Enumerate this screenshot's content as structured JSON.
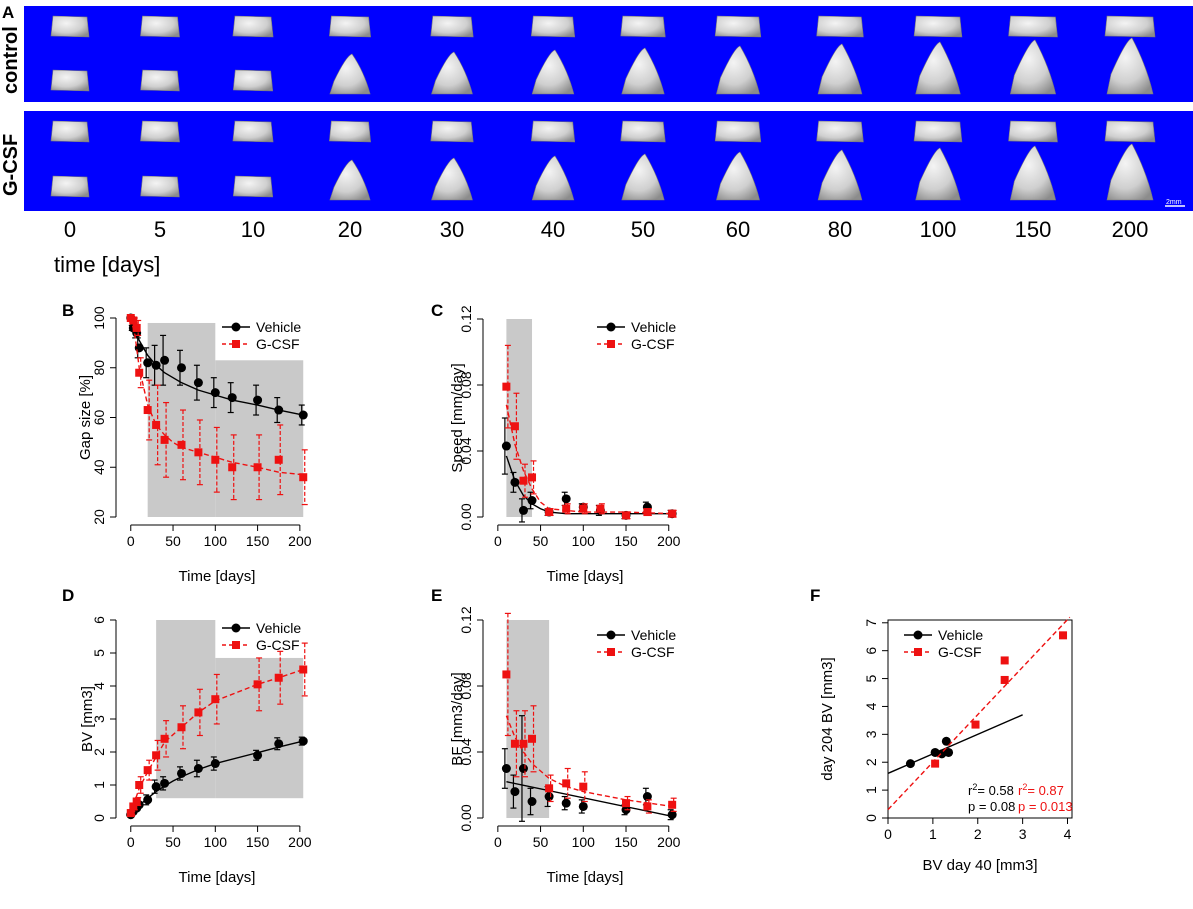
{
  "panel_letters": [
    "A",
    "B",
    "C",
    "D",
    "E",
    "F"
  ],
  "panel_a": {
    "row_labels": [
      "control",
      "G-CSF"
    ],
    "timepoints": [
      "0",
      "5",
      "10",
      "20",
      "30",
      "40",
      "50",
      "60",
      "80",
      "100",
      "150",
      "200"
    ],
    "time_axis_label": "time [days]",
    "scale_bar_label": "2mm",
    "background_color": "#0000ff",
    "specimen_color": "#d6d6d6",
    "specimen_images": "3D micro-CT renderings of bone specimens (two views per row)"
  },
  "colors": {
    "vehicle": "#000000",
    "gcsf": "#ee1111",
    "shade": "#c9c9c9"
  },
  "chart_data": [
    {
      "id": "B",
      "type": "line",
      "title": "",
      "xlabel": "Time [days]",
      "ylabel": "Gap size [%]",
      "xlim": [
        -8,
        212
      ],
      "ylim": [
        20,
        100
      ],
      "xticks": [
        0,
        50,
        100,
        150,
        200
      ],
      "yticks": [
        20,
        40,
        60,
        80,
        100
      ],
      "grid": false,
      "legend": "top-right",
      "shaded_regions": [
        {
          "x": [
            20,
            100
          ],
          "y": [
            20,
            98
          ]
        },
        {
          "x": [
            100,
            204
          ],
          "y": [
            20,
            83
          ]
        }
      ],
      "series": [
        {
          "name": "Vehicle",
          "style": "solid",
          "marker": "circle",
          "color": "#000000",
          "x": [
            0,
            3,
            7,
            10,
            20,
            30,
            40,
            60,
            80,
            100,
            120,
            150,
            175,
            204
          ],
          "values": [
            100,
            96,
            94,
            88,
            82,
            81,
            83,
            80,
            74,
            70,
            68,
            67,
            63,
            61
          ],
          "errors": [
            0,
            1,
            2,
            4,
            6,
            8,
            10,
            7,
            7,
            6,
            6,
            6,
            5,
            4
          ],
          "fit_x": [
            0,
            5,
            10,
            20,
            30,
            40,
            50,
            60,
            80,
            100,
            120,
            150,
            175,
            204
          ],
          "fit_y": [
            100,
            95,
            91,
            85,
            81,
            78,
            76,
            74,
            71,
            69,
            67,
            65,
            63,
            61
          ]
        },
        {
          "name": "G-CSF",
          "style": "dashed",
          "marker": "square",
          "color": "#ee1111",
          "x": [
            0,
            3,
            7,
            10,
            20,
            30,
            40,
            60,
            80,
            100,
            120,
            150,
            175,
            204
          ],
          "values": [
            100,
            99,
            96,
            78,
            63,
            57,
            51,
            49,
            46,
            43,
            40,
            40,
            43,
            36
          ],
          "errors": [
            0,
            1,
            3,
            6,
            12,
            16,
            15,
            14,
            13,
            13,
            13,
            13,
            14,
            11
          ],
          "fit_x": [
            0,
            5,
            10,
            20,
            30,
            40,
            50,
            60,
            80,
            100,
            120,
            150,
            175,
            204
          ],
          "fit_y": [
            100,
            93,
            80,
            65,
            57,
            53,
            50,
            48,
            46,
            44,
            42,
            40,
            38,
            37
          ]
        }
      ]
    },
    {
      "id": "C",
      "type": "line",
      "title": "",
      "xlabel": "Time [days]",
      "ylabel": "Speed [mm/day]",
      "xlim": [
        -8,
        212
      ],
      "ylim": [
        0,
        0.12
      ],
      "xticks": [
        0,
        50,
        100,
        150,
        200
      ],
      "yticks": [
        0.0,
        0.04,
        0.08,
        0.12
      ],
      "ytick_labels": [
        "0.00",
        "0.04",
        "0.08",
        "0.12"
      ],
      "grid": false,
      "legend": "top-right",
      "shaded_regions": [
        {
          "x": [
            10,
            40
          ],
          "y": [
            0,
            0.12
          ]
        }
      ],
      "series": [
        {
          "name": "Vehicle",
          "style": "solid",
          "marker": "circle",
          "color": "#000000",
          "x": [
            10,
            20,
            30,
            40,
            60,
            80,
            100,
            120,
            150,
            175,
            204
          ],
          "values": [
            0.043,
            0.021,
            0.004,
            0.01,
            0.003,
            0.011,
            0.006,
            0.004,
            0.001,
            0.006,
            0.002
          ],
          "errors": [
            0.017,
            0.006,
            0.007,
            0.005,
            0.002,
            0.004,
            0.002,
            0.003,
            0.002,
            0.003,
            0.002
          ],
          "fit_x": [
            10,
            20,
            30,
            40,
            50,
            60,
            80,
            100,
            150,
            204
          ],
          "fit_y": [
            0.037,
            0.022,
            0.013,
            0.008,
            0.005,
            0.003,
            0.002,
            0.002,
            0.002,
            0.002
          ]
        },
        {
          "name": "G-CSF",
          "style": "dashed",
          "marker": "square",
          "color": "#ee1111",
          "x": [
            10,
            20,
            30,
            40,
            60,
            80,
            100,
            120,
            150,
            175,
            204
          ],
          "values": [
            0.079,
            0.055,
            0.022,
            0.024,
            0.003,
            0.005,
            0.005,
            0.005,
            0.001,
            0.003,
            0.002
          ],
          "errors": [
            0.025,
            0.02,
            0.01,
            0.01,
            0.002,
            0.003,
            0.003,
            0.003,
            0.002,
            0.002,
            0.002
          ],
          "fit_x": [
            10,
            20,
            30,
            40,
            50,
            60,
            80,
            100,
            150,
            204
          ],
          "fit_y": [
            0.068,
            0.044,
            0.028,
            0.017,
            0.009,
            0.005,
            0.004,
            0.003,
            0.003,
            0.002
          ]
        }
      ]
    },
    {
      "id": "D",
      "type": "line",
      "title": "",
      "xlabel": "Time [days]",
      "ylabel": "BV [mm3]",
      "xlim": [
        -8,
        212
      ],
      "ylim": [
        0,
        6
      ],
      "xticks": [
        0,
        50,
        100,
        150,
        200
      ],
      "yticks": [
        0,
        1,
        2,
        3,
        4,
        5,
        6
      ],
      "grid": false,
      "legend": "top-right",
      "shaded_regions": [
        {
          "x": [
            30,
            100
          ],
          "y": [
            0.6,
            6
          ]
        },
        {
          "x": [
            100,
            204
          ],
          "y": [
            0.6,
            4.85
          ]
        }
      ],
      "series": [
        {
          "name": "Vehicle",
          "style": "solid",
          "marker": "circle",
          "color": "#000000",
          "x": [
            0,
            3,
            7,
            10,
            20,
            30,
            40,
            60,
            80,
            100,
            150,
            175,
            204
          ],
          "values": [
            0.1,
            0.2,
            0.3,
            0.4,
            0.55,
            0.95,
            1.05,
            1.35,
            1.5,
            1.65,
            1.9,
            2.25,
            2.33
          ],
          "errors": [
            0.02,
            0.05,
            0.1,
            0.12,
            0.15,
            0.2,
            0.2,
            0.2,
            0.25,
            0.2,
            0.15,
            0.18,
            0.12
          ],
          "fit_x": [
            0,
            10,
            20,
            30,
            40,
            50,
            60,
            80,
            100,
            150,
            175,
            204
          ],
          "fit_y": [
            0.1,
            0.38,
            0.6,
            0.8,
            0.97,
            1.12,
            1.25,
            1.47,
            1.65,
            1.98,
            2.15,
            2.33
          ]
        },
        {
          "name": "G-CSF",
          "style": "dashed",
          "marker": "square",
          "color": "#ee1111",
          "x": [
            0,
            3,
            7,
            10,
            20,
            30,
            40,
            60,
            80,
            100,
            150,
            175,
            204
          ],
          "values": [
            0.15,
            0.35,
            0.5,
            1.0,
            1.45,
            1.9,
            2.4,
            2.75,
            3.2,
            3.6,
            4.05,
            4.25,
            4.5
          ],
          "errors": [
            0.05,
            0.1,
            0.12,
            0.25,
            0.3,
            0.45,
            0.55,
            0.65,
            0.7,
            0.75,
            0.8,
            0.8,
            0.8
          ],
          "fit_x": [
            0,
            10,
            20,
            30,
            40,
            60,
            80,
            100,
            150,
            175,
            204
          ],
          "fit_y": [
            0.15,
            0.9,
            1.4,
            1.85,
            2.3,
            2.75,
            3.2,
            3.55,
            4.05,
            4.25,
            4.5
          ]
        }
      ]
    },
    {
      "id": "E",
      "type": "line",
      "title": "",
      "xlabel": "Time [days]",
      "ylabel": "BF [mm3/day]",
      "xlim": [
        -8,
        212
      ],
      "ylim": [
        0,
        0.12
      ],
      "xticks": [
        0,
        50,
        100,
        150,
        200
      ],
      "yticks": [
        0.0,
        0.04,
        0.08,
        0.12
      ],
      "ytick_labels": [
        "0.00",
        "0.04",
        "0.08",
        "0.12"
      ],
      "grid": false,
      "legend": "top-right",
      "shaded_regions": [
        {
          "x": [
            10,
            60
          ],
          "y": [
            0,
            0.12
          ]
        }
      ],
      "series": [
        {
          "name": "Vehicle",
          "style": "solid",
          "marker": "circle",
          "color": "#000000",
          "x": [
            10,
            20,
            30,
            40,
            60,
            80,
            100,
            150,
            175,
            204
          ],
          "values": [
            0.03,
            0.016,
            0.03,
            0.01,
            0.013,
            0.009,
            0.007,
            0.005,
            0.013,
            0.002
          ],
          "errors": [
            0.012,
            0.01,
            0.032,
            0.008,
            0.006,
            0.004,
            0.004,
            0.003,
            0.005,
            0.003
          ],
          "fit_x": [
            10,
            204
          ],
          "fit_y": [
            0.022,
            0.001
          ]
        },
        {
          "name": "G-CSF",
          "style": "dashed",
          "marker": "square",
          "color": "#ee1111",
          "x": [
            10,
            20,
            30,
            40,
            60,
            80,
            100,
            150,
            175,
            204
          ],
          "values": [
            0.087,
            0.045,
            0.045,
            0.048,
            0.018,
            0.021,
            0.019,
            0.009,
            0.007,
            0.008
          ],
          "errors": [
            0.037,
            0.02,
            0.02,
            0.02,
            0.008,
            0.009,
            0.009,
            0.004,
            0.004,
            0.004
          ],
          "fit_x": [
            10,
            20,
            30,
            40,
            60,
            80,
            100,
            150,
            204
          ],
          "fit_y": [
            0.062,
            0.049,
            0.04,
            0.033,
            0.024,
            0.019,
            0.016,
            0.011,
            0.007
          ]
        }
      ]
    },
    {
      "id": "F",
      "type": "scatter",
      "title": "",
      "xlabel": "BV day 40 [mm3]",
      "ylabel": "day 204 BV [mm3]",
      "xlim": [
        0,
        4.1
      ],
      "ylim": [
        0,
        7.1
      ],
      "xticks": [
        0,
        1,
        2,
        3,
        4
      ],
      "yticks": [
        0,
        1,
        2,
        3,
        4,
        5,
        6,
        7
      ],
      "grid": false,
      "legend": "top-left",
      "series": [
        {
          "name": "Vehicle",
          "style": "solid",
          "marker": "circle",
          "color": "#000000",
          "x": [
            0.5,
            1.05,
            1.2,
            1.3,
            1.35
          ],
          "values": [
            1.95,
            2.35,
            2.3,
            2.75,
            2.35
          ],
          "fit_x": [
            0,
            3.0
          ],
          "fit_y": [
            1.6,
            3.7
          ],
          "stats": {
            "r2": "= 0.58",
            "p": "p = 0.08"
          }
        },
        {
          "name": "G-CSF",
          "style": "dashed",
          "marker": "square",
          "color": "#ee1111",
          "x": [
            1.05,
            1.95,
            2.6,
            2.6,
            3.9
          ],
          "values": [
            1.95,
            3.35,
            5.65,
            4.95,
            6.55
          ],
          "fit_x": [
            0,
            4.05
          ],
          "fit_y": [
            0.3,
            7.2
          ],
          "stats": {
            "r2": "= 0.87",
            "p": "p = 0.013"
          }
        }
      ]
    }
  ]
}
